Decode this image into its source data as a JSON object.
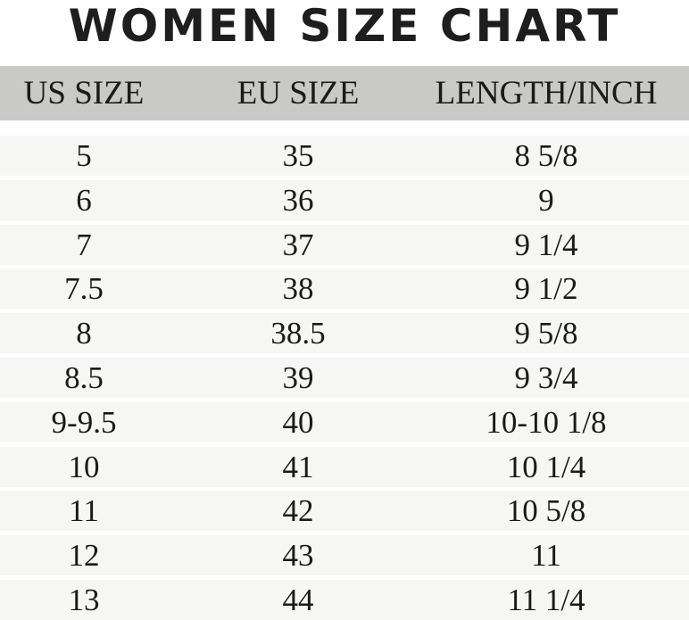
{
  "title": "WOMEN SIZE CHART",
  "headers": [
    "US SIZE",
    "EU SIZE",
    "LENGTH/INCH"
  ],
  "rows": [
    [
      "5",
      "35",
      "8 5/8"
    ],
    [
      "6",
      "36",
      "9"
    ],
    [
      "7",
      "37",
      "9 1/4"
    ],
    [
      "7.5",
      "38",
      "9 1/2"
    ],
    [
      "8",
      "38.5",
      "9 5/8"
    ],
    [
      "8.5",
      "39",
      "9 3/4"
    ],
    [
      "9-9.5",
      "40",
      "10-10 1/8"
    ],
    [
      "10",
      "41",
      "10 1/4"
    ],
    [
      "11",
      "42",
      "10 5/8"
    ],
    [
      "12",
      "43",
      "11"
    ],
    [
      "13",
      "44",
      "11 1/4"
    ]
  ],
  "colors": {
    "header_bg": "#c9c9c8",
    "row_bg": "#f6f6f4",
    "text": "#1a1a1a"
  }
}
